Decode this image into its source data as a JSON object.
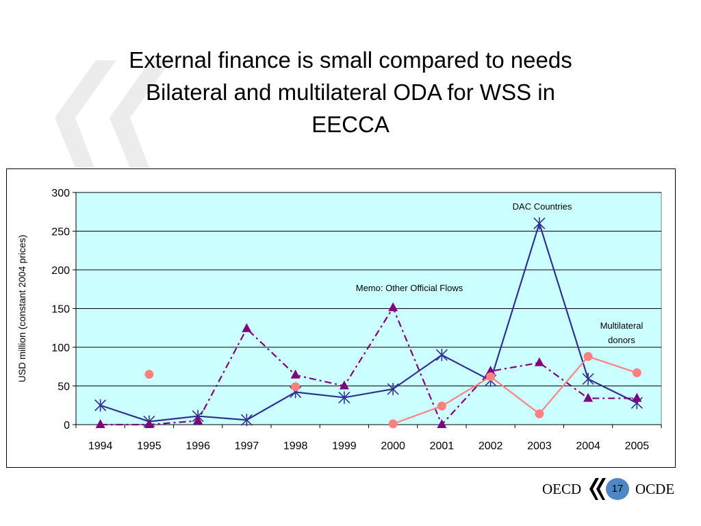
{
  "slide": {
    "title_line1": "External finance is small compared to needs",
    "title_line2": "Bilateral and multilateral ODA for WSS in",
    "title_line3": "EECCA",
    "footer_left": "OECD",
    "footer_right": "OCDE",
    "page_number": "17",
    "colors": {
      "plot_bg": "#ccffff",
      "watermark": "#ececec",
      "badge": "#4f87c4"
    }
  },
  "chart_data": {
    "type": "line",
    "ylabel": "USD million (constant 2004 prices)",
    "xlabel": "",
    "categories": [
      "1994",
      "1995",
      "1996",
      "1997",
      "1998",
      "1999",
      "2000",
      "2001",
      "2002",
      "2003",
      "2004",
      "2005"
    ],
    "ylim": [
      0,
      300
    ],
    "yticks": [
      0,
      50,
      100,
      150,
      200,
      250,
      300
    ],
    "grid": "horizontal",
    "series": [
      {
        "name": "DAC Countries",
        "color": "#2e3192",
        "marker": "asterisk",
        "line": "solid",
        "values": [
          25,
          4,
          11,
          6,
          42,
          35,
          46,
          90,
          57,
          260,
          59,
          28
        ]
      },
      {
        "name": "Memo: Other Official Flows",
        "color": "#800080",
        "marker": "triangle",
        "line": "dash-dot",
        "values": [
          0,
          0,
          5,
          124,
          64,
          50,
          151,
          0,
          69,
          80,
          34,
          34
        ]
      },
      {
        "name": "Multilateral donors",
        "color": "#ff8080",
        "marker": "circle",
        "line": "solid",
        "values": [
          null,
          65,
          null,
          null,
          49,
          null,
          1,
          24,
          62,
          14,
          88,
          67
        ]
      }
    ],
    "annotations": {
      "dac": "DAC Countries",
      "oof": "Memo: Other Official Flows",
      "multi_line1": "Multilateral",
      "multi_line2": "donors"
    }
  }
}
